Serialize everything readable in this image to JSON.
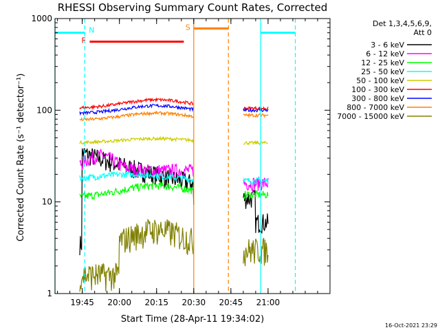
{
  "chart_data": {
    "type": "line",
    "title": "RHESSI Observing Summary Count Rates, Corrected",
    "xlabel": "Start Time (28-Apr-11 19:34:02)",
    "ylabel": "Corrected Count Rate (s⁻¹ detector⁻¹)",
    "timestamp": "16-Oct-2021 23:29",
    "y_scale": "log",
    "ylim": [
      1,
      1000
    ],
    "xlim_minutes": [
      "19:34",
      "21:25"
    ],
    "x_ticks": [
      "19:45",
      "20:00",
      "20:15",
      "20:30",
      "20:45",
      "21:00"
    ],
    "y_ticks": [
      "1",
      "10",
      "100",
      "1000"
    ],
    "legend": {
      "header1": "Det 1,3,4,5,6,9,",
      "header2": "Att 0",
      "placement": "right"
    },
    "series": [
      {
        "name": "3 - 6 keV",
        "color": "#000000"
      },
      {
        "name": "6 - 12 keV",
        "color": "#ff00ff"
      },
      {
        "name": "12 - 25 keV",
        "color": "#00ff00"
      },
      {
        "name": "25 - 50 keV",
        "color": "#00ffff"
      },
      {
        "name": "50 - 100 keV",
        "color": "#cccc00"
      },
      {
        "name": "100 - 300 keV",
        "color": "#ff0000"
      },
      {
        "name": "300 - 800 keV",
        "color": "#0000ff"
      },
      {
        "name": "800 - 7000 keV",
        "color": "#ff8000"
      },
      {
        "name": "7000 - 15000 keV",
        "color": "#808000"
      }
    ],
    "segments": [
      {
        "start": "19:44",
        "end": "20:30"
      },
      {
        "start": "20:50",
        "end": "21:00"
      }
    ],
    "flag_bars": [
      {
        "label": "N",
        "color": "#00ffff",
        "start": "19:34",
        "end": "19:46",
        "level": 700
      },
      {
        "label": "F",
        "color": "#ff0000",
        "start": "19:48",
        "end": "20:26",
        "level": 560
      },
      {
        "label": "S",
        "color": "#ff8000",
        "start": "20:30",
        "end": "20:44",
        "level": 780
      },
      {
        "label": "",
        "color": "#00ffff",
        "start": "20:57",
        "end": "21:11",
        "level": 700
      }
    ],
    "vertical_lines": [
      {
        "time": "19:34",
        "color": "#00ffff",
        "style": "solid"
      },
      {
        "time": "19:46",
        "color": "#00ffff",
        "style": "dashed"
      },
      {
        "time": "20:30",
        "color": "#ff8000",
        "style": "solid"
      },
      {
        "time": "20:44",
        "color": "#ff8000",
        "style": "dashed"
      },
      {
        "time": "20:57",
        "color": "#00ffff",
        "style": "solid"
      },
      {
        "time": "21:11",
        "color": "#00ffff",
        "style": "dashed"
      }
    ]
  }
}
